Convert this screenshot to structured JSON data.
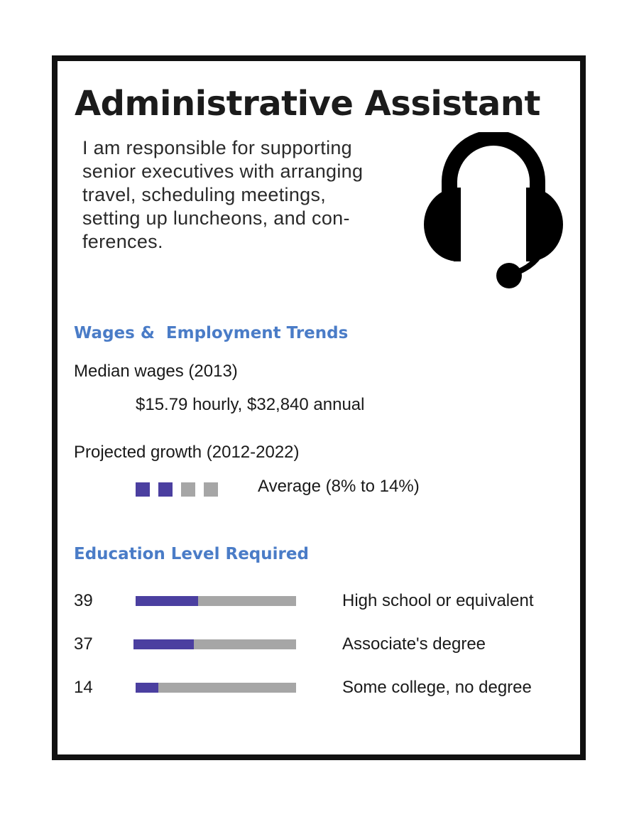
{
  "title": "Administrative Assistant",
  "description": "I am responsible for supporting senior executives with arranging travel, scheduling meetings, setting up luncheons, and con-ferences.",
  "description_lines": [
    "I am responsible for supporting",
    "senior executives with arranging",
    "travel, scheduling meetings,",
    "setting up luncheons, and con-",
    "ferences."
  ],
  "icon": "headset-icon",
  "colors": {
    "heading": "#4a7cc7",
    "filled": "#4b3fa0",
    "empty": "#a6a6a6",
    "border": "#111111"
  },
  "wages": {
    "heading": "Wages &  Employment Trends",
    "median_label": "Median wages (2013)",
    "median_value": "$15.79 hourly, $32,840 annual",
    "growth_label": "Projected growth (2012-2022)",
    "growth_value": "Average (8% to 14%)",
    "growth_filled": 2,
    "growth_total": 4
  },
  "education": {
    "heading": "Education Level Required",
    "rows": [
      {
        "percent": "39",
        "fraction": 0.39,
        "label": "High school or equivalent"
      },
      {
        "percent": "37",
        "fraction": 0.37,
        "label": "Associate's degree"
      },
      {
        "percent": "14",
        "fraction": 0.14,
        "label": "Some college, no degree"
      }
    ]
  }
}
